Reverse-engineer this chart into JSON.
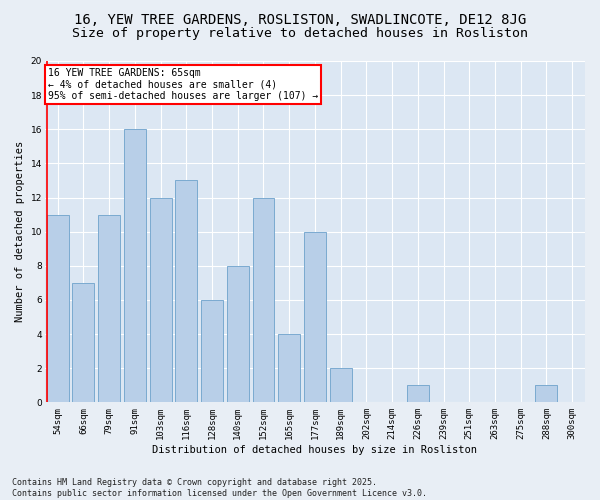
{
  "title": "16, YEW TREE GARDENS, ROSLISTON, SWADLINCOTE, DE12 8JG",
  "subtitle": "Size of property relative to detached houses in Rosliston",
  "xlabel": "Distribution of detached houses by size in Rosliston",
  "ylabel": "Number of detached properties",
  "categories": [
    "54sqm",
    "66sqm",
    "79sqm",
    "91sqm",
    "103sqm",
    "116sqm",
    "128sqm",
    "140sqm",
    "152sqm",
    "165sqm",
    "177sqm",
    "189sqm",
    "202sqm",
    "214sqm",
    "226sqm",
    "239sqm",
    "251sqm",
    "263sqm",
    "275sqm",
    "288sqm",
    "300sqm"
  ],
  "values": [
    11,
    7,
    11,
    16,
    12,
    13,
    6,
    8,
    12,
    4,
    10,
    2,
    0,
    0,
    1,
    0,
    0,
    0,
    0,
    1,
    0
  ],
  "bar_color": "#b8cfe8",
  "bar_edge_color": "#7aaad0",
  "annotation_text": "16 YEW TREE GARDENS: 65sqm\n← 4% of detached houses are smaller (4)\n95% of semi-detached houses are larger (107) →",
  "annotation_box_color": "white",
  "annotation_box_edge_color": "red",
  "ylim": [
    0,
    20
  ],
  "yticks": [
    0,
    2,
    4,
    6,
    8,
    10,
    12,
    14,
    16,
    18,
    20
  ],
  "bg_color": "#e8eef5",
  "plot_bg_color": "#dce7f3",
  "footer": "Contains HM Land Registry data © Crown copyright and database right 2025.\nContains public sector information licensed under the Open Government Licence v3.0.",
  "title_fontsize": 10,
  "subtitle_fontsize": 9.5,
  "axis_label_fontsize": 7.5,
  "tick_fontsize": 6.5,
  "annotation_fontsize": 7,
  "footer_fontsize": 6
}
